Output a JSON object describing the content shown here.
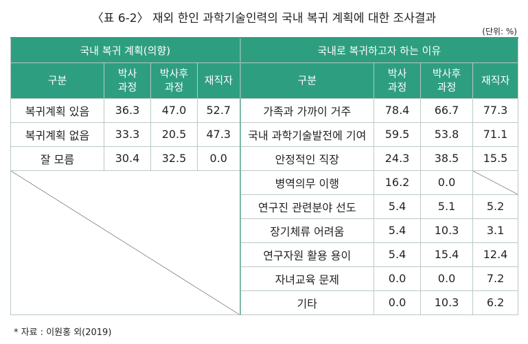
{
  "title": "〈표 6-2〉 재외 한인 과학기술인력의 국내 복귀 계획에 대한 조사결과",
  "unit": "(단위: %)",
  "left_table": {
    "group_header": "국내 복귀 계획(의향)",
    "headers": [
      "구분",
      "박사\n과정",
      "박사후\n과정",
      "재직자"
    ],
    "rows": [
      {
        "label": "복귀계획 있음",
        "values": [
          "36.3",
          "47.0",
          "52.7"
        ]
      },
      {
        "label": "복귀계획 없음",
        "values": [
          "33.3",
          "20.5",
          "47.3"
        ]
      },
      {
        "label": "잘 모름",
        "values": [
          "30.4",
          "32.5",
          "0.0"
        ]
      }
    ]
  },
  "right_table": {
    "group_header": "국내로 복귀하고자 하는 이유",
    "headers": [
      "구분",
      "박사\n과정",
      "박사후\n과정",
      "재직자"
    ],
    "rows": [
      {
        "label": "가족과 가까이 거주",
        "values": [
          "78.4",
          "66.7",
          "77.3"
        ]
      },
      {
        "label": "국내 과학기술발전에 기여",
        "values": [
          "59.5",
          "53.8",
          "71.1"
        ]
      },
      {
        "label": "안정적인 직장",
        "values": [
          "24.3",
          "38.5",
          "15.5"
        ]
      },
      {
        "label": "병역의무 이행",
        "values": [
          "16.2",
          "0.0",
          ""
        ]
      },
      {
        "label": "연구진 관련분야 선도",
        "values": [
          "5.4",
          "5.1",
          "5.2"
        ]
      },
      {
        "label": "장기체류 어려움",
        "values": [
          "5.4",
          "10.3",
          "3.1"
        ]
      },
      {
        "label": "연구자원 활용 용이",
        "values": [
          "5.4",
          "15.4",
          "12.4"
        ]
      },
      {
        "label": "자녀교육 문제",
        "values": [
          "0.0",
          "0.0",
          "7.2"
        ]
      },
      {
        "label": "기타",
        "values": [
          "0.0",
          "10.3",
          "6.2"
        ]
      }
    ]
  },
  "footnote": "* 자료 : 이원홍 외(2019)"
}
